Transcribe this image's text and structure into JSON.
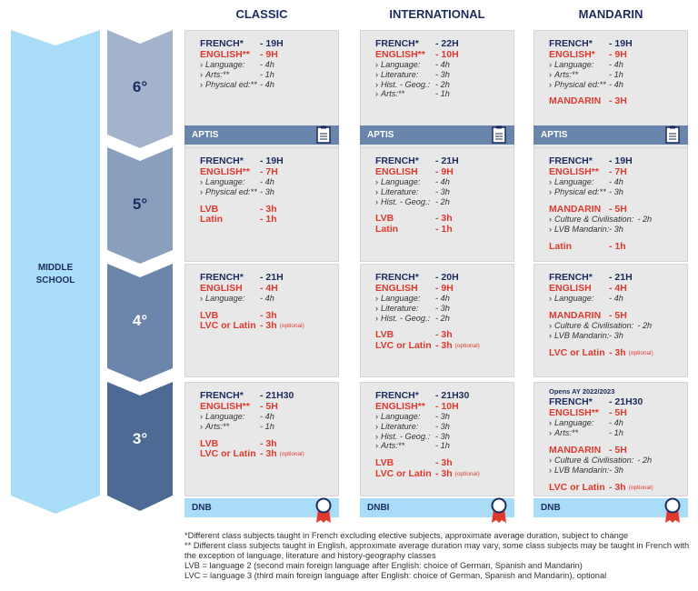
{
  "columns": [
    {
      "title": "CLASSIC"
    },
    {
      "title": "INTERNATIONAL"
    },
    {
      "title": "MANDARIN"
    }
  ],
  "side_label": "MIDDLE SCHOOL",
  "grades": [
    {
      "label": "6°",
      "cells": [
        {
          "groups": [
            {
              "lines": [
                {
                  "label": "FRENCH*",
                  "value": "- 19H",
                  "kind": "navy"
                },
                {
                  "label": "ENGLISH**",
                  "value": "- 9H",
                  "kind": "red"
                },
                {
                  "label": "Language:",
                  "value": "- 4h",
                  "kind": "sub"
                },
                {
                  "label": "Arts:**",
                  "value": "- 1h",
                  "kind": "sub"
                },
                {
                  "label": "Physical ed:**",
                  "value": "- 4h",
                  "kind": "sub"
                }
              ]
            }
          ],
          "bar": "APTIS"
        },
        {
          "groups": [
            {
              "lines": [
                {
                  "label": "FRENCH*",
                  "value": "- 22H",
                  "kind": "navy"
                },
                {
                  "label": "ENGLISH**",
                  "value": "- 10H",
                  "kind": "red"
                },
                {
                  "label": "Language:",
                  "value": "- 4h",
                  "kind": "sub"
                },
                {
                  "label": "Literature:",
                  "value": "- 3h",
                  "kind": "sub"
                },
                {
                  "label": "Hist. - Geog.:",
                  "value": "- 2h",
                  "kind": "sub"
                },
                {
                  "label": "Arts:**",
                  "value": "- 1h",
                  "kind": "sub"
                }
              ]
            }
          ],
          "bar": "APTIS"
        },
        {
          "groups": [
            {
              "lines": [
                {
                  "label": "FRENCH*",
                  "value": "- 19H",
                  "kind": "navy"
                },
                {
                  "label": "ENGLISH*",
                  "value": "- 9H",
                  "kind": "red"
                },
                {
                  "label": "Language:",
                  "value": "- 4h",
                  "kind": "sub"
                },
                {
                  "label": "Arts:**",
                  "value": "- 1h",
                  "kind": "sub"
                },
                {
                  "label": "Physical ed:**",
                  "value": "- 4h",
                  "kind": "sub"
                }
              ]
            },
            {
              "lines": [
                {
                  "label": "MANDARIN",
                  "value": "- 3H",
                  "kind": "red"
                }
              ]
            }
          ],
          "bar": "APTIS"
        }
      ]
    },
    {
      "label": "5°",
      "cells": [
        {
          "groups": [
            {
              "lines": [
                {
                  "label": "FRENCH*",
                  "value": "- 19H",
                  "kind": "navy"
                },
                {
                  "label": "ENGLISH**",
                  "value": "- 7H",
                  "kind": "red"
                },
                {
                  "label": "Language:",
                  "value": "- 4h",
                  "kind": "sub"
                },
                {
                  "label": "Physical ed:**",
                  "value": "- 3h",
                  "kind": "sub"
                }
              ]
            },
            {
              "lines": [
                {
                  "label": "LVB",
                  "value": "- 3h",
                  "kind": "red"
                },
                {
                  "label": "Latin",
                  "value": "- 1h",
                  "kind": "red"
                }
              ]
            }
          ]
        },
        {
          "groups": [
            {
              "lines": [
                {
                  "label": "FRENCH*",
                  "value": "- 21H",
                  "kind": "navy"
                },
                {
                  "label": "ENGLISH",
                  "value": "- 9H",
                  "kind": "red"
                },
                {
                  "label": "Language:",
                  "value": "- 4h",
                  "kind": "sub"
                },
                {
                  "label": "Literature:",
                  "value": "- 3h",
                  "kind": "sub"
                },
                {
                  "label": "Hist. - Geog.:",
                  "value": "- 2h",
                  "kind": "sub"
                }
              ]
            },
            {
              "lines": [
                {
                  "label": "LVB",
                  "value": "- 3h",
                  "kind": "red"
                },
                {
                  "label": "Latin",
                  "value": "- 1h",
                  "kind": "red"
                }
              ]
            }
          ]
        },
        {
          "groups": [
            {
              "lines": [
                {
                  "label": "FRENCH*",
                  "value": "- 19H",
                  "kind": "navy"
                },
                {
                  "label": "ENGLISH**",
                  "value": "- 7H",
                  "kind": "red"
                },
                {
                  "label": "Language:",
                  "value": "- 4h",
                  "kind": "sub"
                },
                {
                  "label": "Physical ed:**",
                  "value": "- 3h",
                  "kind": "sub"
                }
              ]
            },
            {
              "lines": [
                {
                  "label": "MANDARIN",
                  "value": "- 5H",
                  "kind": "red"
                },
                {
                  "label": "Culture & Civilisation:",
                  "value": "- 2h",
                  "kind": "sub"
                },
                {
                  "label": "LVB Mandarin:",
                  "value": "- 3h",
                  "kind": "sub"
                }
              ]
            },
            {
              "lines": [
                {
                  "label": "Latin",
                  "value": "- 1h",
                  "kind": "red"
                }
              ]
            }
          ]
        }
      ]
    },
    {
      "label": "4°",
      "cells": [
        {
          "groups": [
            {
              "lines": [
                {
                  "label": "FRENCH*",
                  "value": "- 21H",
                  "kind": "navy"
                },
                {
                  "label": "ENGLISH",
                  "value": "- 4H",
                  "kind": "red"
                },
                {
                  "label": "Language:",
                  "value": "- 4h",
                  "kind": "sub"
                }
              ]
            },
            {
              "lines": [
                {
                  "label": "LVB",
                  "value": "- 3h",
                  "kind": "red"
                },
                {
                  "label": "LVC or Latin",
                  "value": "- 3h",
                  "kind": "red",
                  "note": "(optional)"
                }
              ]
            }
          ]
        },
        {
          "groups": [
            {
              "lines": [
                {
                  "label": "FRENCH*",
                  "value": "- 20H",
                  "kind": "navy"
                },
                {
                  "label": "ENGLISH",
                  "value": "- 9H",
                  "kind": "red"
                },
                {
                  "label": "Language:",
                  "value": "- 4h",
                  "kind": "sub"
                },
                {
                  "label": "Literature:",
                  "value": "- 3h",
                  "kind": "sub"
                },
                {
                  "label": "Hist. - Geog.:",
                  "value": "- 2h",
                  "kind": "sub"
                }
              ]
            },
            {
              "lines": [
                {
                  "label": "LVB",
                  "value": "- 3h",
                  "kind": "red"
                },
                {
                  "label": "LVC or Latin",
                  "value": "- 3h",
                  "kind": "red",
                  "note": "(optional)"
                }
              ]
            }
          ]
        },
        {
          "groups": [
            {
              "lines": [
                {
                  "label": "FRENCH*",
                  "value": "- 21H",
                  "kind": "navy"
                },
                {
                  "label": "ENGLISH",
                  "value": "- 4H",
                  "kind": "red"
                },
                {
                  "label": "Language:",
                  "value": "- 4h",
                  "kind": "sub"
                }
              ]
            },
            {
              "lines": [
                {
                  "label": "MANDARIN",
                  "value": "- 5H",
                  "kind": "red"
                },
                {
                  "label": "Culture & Civilisation:",
                  "value": "- 2h",
                  "kind": "sub"
                },
                {
                  "label": "LVB Mandarin:",
                  "value": "- 3h",
                  "kind": "sub"
                }
              ]
            },
            {
              "lines": [
                {
                  "label": "LVC or Latin",
                  "value": "- 3h",
                  "kind": "red",
                  "note": "(optional)"
                }
              ]
            }
          ]
        }
      ]
    },
    {
      "label": "3°",
      "cells": [
        {
          "groups": [
            {
              "lines": [
                {
                  "label": "FRENCH*",
                  "value": "- 21H30",
                  "kind": "navy"
                },
                {
                  "label": "ENGLISH**",
                  "value": "- 5H",
                  "kind": "red"
                },
                {
                  "label": "Language:",
                  "value": "- 4h",
                  "kind": "sub"
                },
                {
                  "label": "Arts:**",
                  "value": "- 1h",
                  "kind": "sub"
                }
              ]
            },
            {
              "lines": [
                {
                  "label": "LVB",
                  "value": "- 3h",
                  "kind": "red"
                },
                {
                  "label": "LVC or Latin",
                  "value": "- 3h",
                  "kind": "red",
                  "note": "(optional)"
                }
              ]
            }
          ],
          "bar": "DNB"
        },
        {
          "groups": [
            {
              "lines": [
                {
                  "label": "FRENCH*",
                  "value": "- 21H30",
                  "kind": "navy"
                },
                {
                  "label": "ENGLISH**",
                  "value": "- 10H",
                  "kind": "red"
                },
                {
                  "label": "Language:",
                  "value": "- 3h",
                  "kind": "sub"
                },
                {
                  "label": "Literature:",
                  "value": "- 3h",
                  "kind": "sub"
                },
                {
                  "label": "Hist. - Geog.:",
                  "value": "- 3h",
                  "kind": "sub"
                },
                {
                  "label": "Arts:**",
                  "value": "- 1h",
                  "kind": "sub"
                }
              ]
            },
            {
              "lines": [
                {
                  "label": "LVB",
                  "value": "- 3h",
                  "kind": "red"
                },
                {
                  "label": "LVC or Latin",
                  "value": "- 3h",
                  "kind": "red",
                  "note": "(optional)"
                }
              ]
            }
          ],
          "bar": "DNBI"
        },
        {
          "note": "Opens AY 2022/2023",
          "groups": [
            {
              "lines": [
                {
                  "label": "FRENCH*",
                  "value": "- 21H30",
                  "kind": "navy"
                },
                {
                  "label": "ENGLISH**",
                  "value": "- 5H",
                  "kind": "red"
                },
                {
                  "label": "Language:",
                  "value": "- 4h",
                  "kind": "sub"
                },
                {
                  "label": "Arts:**",
                  "value": "- 1h",
                  "kind": "sub"
                }
              ]
            },
            {
              "lines": [
                {
                  "label": "MANDARIN",
                  "value": "- 5H",
                  "kind": "red"
                },
                {
                  "label": "Culture & Civilisation:",
                  "value": "- 2h",
                  "kind": "sub"
                },
                {
                  "label": "LVB Mandarin:",
                  "value": "- 3h",
                  "kind": "sub"
                }
              ]
            },
            {
              "lines": [
                {
                  "label": "LVC or Latin",
                  "value": "- 3h",
                  "kind": "red",
                  "note": "(optional)"
                }
              ]
            }
          ],
          "bar": "DNB"
        }
      ]
    }
  ],
  "footnotes": [
    "*Different class subjects taught in French excluding elective subjects, approximate average duration, subject to change",
    "** Different class subjects taught in English, approximate average duration may vary, some class subjects may be taught in French with the exception of language, literature and history-geography classes",
    "LVB = language 2 (second main foreign language after English: choice of German, Spanish and Mandarin)",
    "LVC = language 3 (third main foreign language after English: choice of German, Spanish and Mandarin), optional"
  ]
}
